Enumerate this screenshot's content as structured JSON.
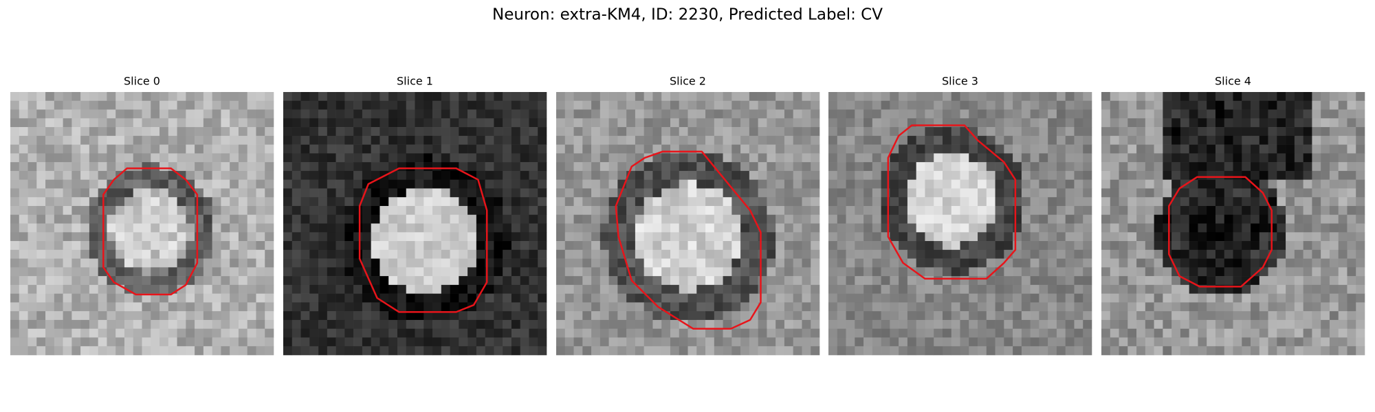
{
  "title": "Neuron: extra-KM4, ID: 2230, Predicted Label: CV",
  "panels": [
    {
      "title": "Slice 0"
    },
    {
      "title": "Slice 1"
    },
    {
      "title": "Slice 2"
    },
    {
      "title": "Slice 3"
    },
    {
      "title": "Slice 4"
    }
  ]
}
